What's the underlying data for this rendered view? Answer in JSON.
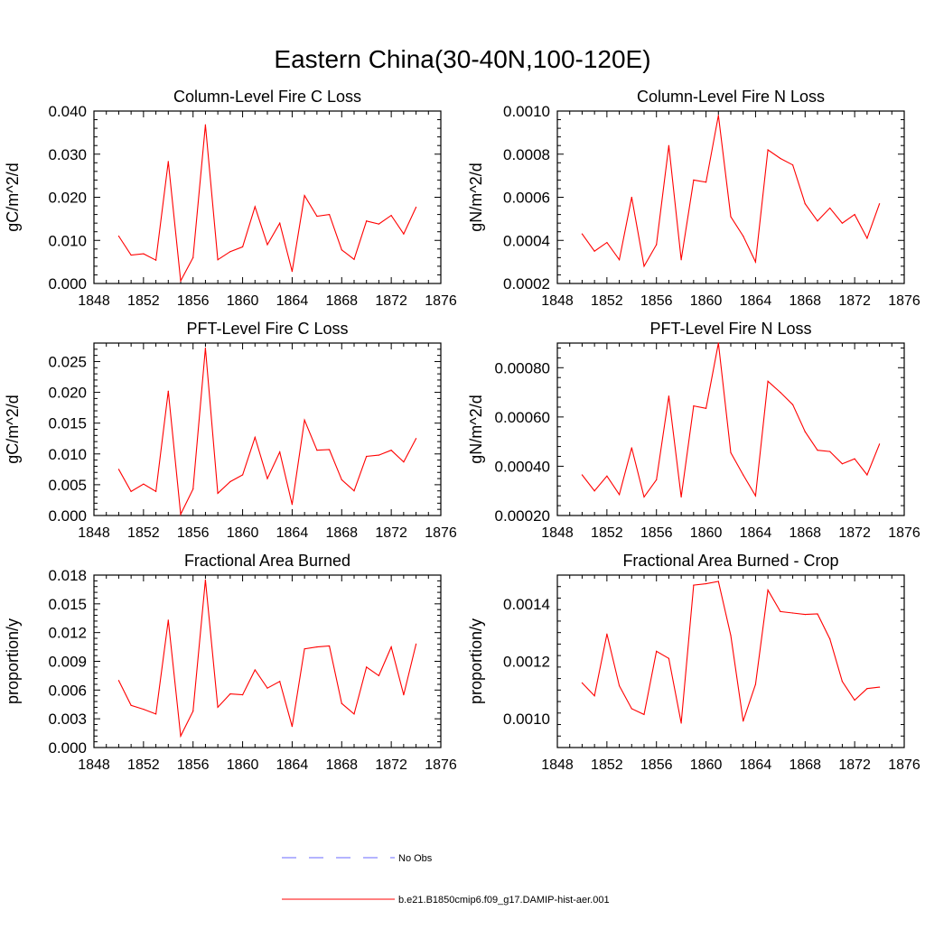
{
  "title": "Eastern China(30-40N,100-120E)",
  "legend": {
    "placement": "bottom-center",
    "entries": [
      {
        "label": "No Obs",
        "color": "#6a6aff",
        "style": "dashed"
      },
      {
        "label": "b.e21.B1850cmip6.f09_g17.DAMIP-hist-aer.001",
        "color": "#ff0000",
        "style": "solid"
      }
    ]
  },
  "chart_data": [
    {
      "type": "line",
      "title": "Column-Level Fire C Loss",
      "xlabel": "",
      "ylabel": "gC/m^2/d",
      "xlim": [
        1848,
        1876
      ],
      "ylim": [
        0,
        0.04
      ],
      "xticks": [
        "1848",
        "1852",
        "1856",
        "1860",
        "1864",
        "1868",
        "1872",
        "1876"
      ],
      "yticks": [
        "0.000",
        "0.010",
        "0.020",
        "0.030",
        "0.040"
      ],
      "x": [
        1850,
        1851,
        1852,
        1853,
        1854,
        1855,
        1856,
        1857,
        1858,
        1859,
        1860,
        1861,
        1862,
        1863,
        1864,
        1865,
        1866,
        1867,
        1868,
        1869,
        1870,
        1871,
        1872,
        1873,
        1874
      ],
      "series": [
        {
          "name": "b.e21.B1850cmip6.f09_g17.DAMIP-hist-aer.001",
          "color": "#ff0000",
          "values": [
            0.011,
            0.0066,
            0.0069,
            0.0054,
            0.0283,
            0.0006,
            0.006,
            0.0368,
            0.0055,
            0.0074,
            0.0085,
            0.0178,
            0.009,
            0.014,
            0.0028,
            0.0204,
            0.0156,
            0.016,
            0.0078,
            0.0056,
            0.0145,
            0.0138,
            0.0158,
            0.0115,
            0.0177
          ]
        }
      ]
    },
    {
      "type": "line",
      "title": "Column-Level Fire N Loss",
      "xlabel": "",
      "ylabel": "gN/m^2/d",
      "xlim": [
        1848,
        1876
      ],
      "ylim": [
        0.0002,
        0.001
      ],
      "xticks": [
        "1848",
        "1852",
        "1856",
        "1860",
        "1864",
        "1868",
        "1872",
        "1876"
      ],
      "yticks": [
        "0.0002",
        "0.0004",
        "0.0006",
        "0.0008",
        "0.0010"
      ],
      "x": [
        1850,
        1851,
        1852,
        1853,
        1854,
        1855,
        1856,
        1857,
        1858,
        1859,
        1860,
        1861,
        1862,
        1863,
        1864,
        1865,
        1866,
        1867,
        1868,
        1869,
        1870,
        1871,
        1872,
        1873,
        1874
      ],
      "series": [
        {
          "name": "b.e21.B1850cmip6.f09_g17.DAMIP-hist-aer.001",
          "color": "#ff0000",
          "values": [
            0.00043,
            0.00035,
            0.00039,
            0.00031,
            0.0006,
            0.00028,
            0.00038,
            0.00084,
            0.00031,
            0.00068,
            0.00067,
            0.00098,
            0.00051,
            0.00042,
            0.0003,
            0.00082,
            0.00078,
            0.00075,
            0.00057,
            0.00049,
            0.00055,
            0.00048,
            0.00052,
            0.00041,
            0.00057
          ]
        }
      ]
    },
    {
      "type": "line",
      "title": "PFT-Level Fire C Loss",
      "xlabel": "",
      "ylabel": "gC/m^2/d",
      "xlim": [
        1848,
        1876
      ],
      "ylim": [
        0,
        0.028
      ],
      "xticks": [
        "1848",
        "1852",
        "1856",
        "1860",
        "1864",
        "1868",
        "1872",
        "1876"
      ],
      "yticks": [
        "0.000",
        "0.005",
        "0.010",
        "0.015",
        "0.020",
        "0.025"
      ],
      "x": [
        1850,
        1851,
        1852,
        1853,
        1854,
        1855,
        1856,
        1857,
        1858,
        1859,
        1860,
        1861,
        1862,
        1863,
        1864,
        1865,
        1866,
        1867,
        1868,
        1869,
        1870,
        1871,
        1872,
        1873,
        1874
      ],
      "series": [
        {
          "name": "b.e21.B1850cmip6.f09_g17.DAMIP-hist-aer.001",
          "color": "#ff0000",
          "values": [
            0.0075,
            0.0039,
            0.0051,
            0.0039,
            0.0202,
            0.0002,
            0.0043,
            0.0272,
            0.0036,
            0.0055,
            0.0066,
            0.0127,
            0.006,
            0.0103,
            0.0018,
            0.0155,
            0.0106,
            0.0107,
            0.0058,
            0.004,
            0.0096,
            0.0098,
            0.0106,
            0.0087,
            0.0125
          ]
        }
      ]
    },
    {
      "type": "line",
      "title": "PFT-Level Fire N Loss",
      "xlabel": "",
      "ylabel": "gN/m^2/d",
      "xlim": [
        1848,
        1876
      ],
      "ylim": [
        0.0002,
        0.0009
      ],
      "xticks": [
        "1848",
        "1852",
        "1856",
        "1860",
        "1864",
        "1868",
        "1872",
        "1876"
      ],
      "yticks": [
        "0.00020",
        "0.00040",
        "0.00060",
        "0.00080"
      ],
      "x": [
        1850,
        1851,
        1852,
        1853,
        1854,
        1855,
        1856,
        1857,
        1858,
        1859,
        1860,
        1861,
        1862,
        1863,
        1864,
        1865,
        1866,
        1867,
        1868,
        1869,
        1870,
        1871,
        1872,
        1873,
        1874
      ],
      "series": [
        {
          "name": "b.e21.B1850cmip6.f09_g17.DAMIP-hist-aer.001",
          "color": "#ff0000",
          "values": [
            0.000365,
            0.0003,
            0.00036,
            0.000285,
            0.000475,
            0.000275,
            0.000345,
            0.000685,
            0.000275,
            0.000645,
            0.000635,
            0.0009,
            0.000455,
            0.000365,
            0.00028,
            0.000745,
            0.0007,
            0.00065,
            0.00054,
            0.000465,
            0.00046,
            0.00041,
            0.00043,
            0.000365,
            0.00049
          ]
        }
      ]
    },
    {
      "type": "line",
      "title": "Fractional Area Burned",
      "xlabel": "",
      "ylabel": "proportion/y",
      "xlim": [
        1848,
        1876
      ],
      "ylim": [
        0,
        0.018
      ],
      "xticks": [
        "1848",
        "1852",
        "1856",
        "1860",
        "1864",
        "1868",
        "1872",
        "1876"
      ],
      "yticks": [
        "0.000",
        "0.003",
        "0.006",
        "0.009",
        "0.012",
        "0.015",
        "0.018"
      ],
      "x": [
        1850,
        1851,
        1852,
        1853,
        1854,
        1855,
        1856,
        1857,
        1858,
        1859,
        1860,
        1861,
        1862,
        1863,
        1864,
        1865,
        1866,
        1867,
        1868,
        1869,
        1870,
        1871,
        1872,
        1873,
        1874
      ],
      "series": [
        {
          "name": "b.e21.B1850cmip6.f09_g17.DAMIP-hist-aer.001",
          "color": "#ff0000",
          "values": [
            0.007,
            0.0044,
            0.004,
            0.0035,
            0.0133,
            0.0012,
            0.0038,
            0.0175,
            0.0042,
            0.0056,
            0.0055,
            0.0081,
            0.0062,
            0.0069,
            0.0022,
            0.0103,
            0.0105,
            0.0106,
            0.0046,
            0.0035,
            0.0084,
            0.0075,
            0.0105,
            0.0055,
            0.0108
          ]
        }
      ]
    },
    {
      "type": "line",
      "title": "Fractional Area Burned - Crop",
      "xlabel": "",
      "ylabel": "proportion/y",
      "xlim": [
        1848,
        1876
      ],
      "ylim": [
        0.0009,
        0.0015
      ],
      "xticks": [
        "1848",
        "1852",
        "1856",
        "1860",
        "1864",
        "1868",
        "1872",
        "1876"
      ],
      "yticks": [
        "0.0010",
        "0.0012",
        "0.0014"
      ],
      "yticks_at": [
        0.001,
        0.0012,
        0.0014
      ],
      "x": [
        1850,
        1851,
        1852,
        1853,
        1854,
        1855,
        1856,
        1857,
        1858,
        1859,
        1860,
        1861,
        1862,
        1863,
        1864,
        1865,
        1866,
        1867,
        1868,
        1869,
        1870,
        1871,
        1872,
        1873,
        1874
      ],
      "series": [
        {
          "name": "b.e21.B1850cmip6.f09_g17.DAMIP-hist-aer.001",
          "color": "#ff0000",
          "values": [
            0.001125,
            0.00108,
            0.001295,
            0.001115,
            0.001035,
            0.001015,
            0.001235,
            0.00121,
            0.000985,
            0.001465,
            0.00147,
            0.001478,
            0.00129,
            0.000992,
            0.00112,
            0.001448,
            0.001373,
            0.001368,
            0.001363,
            0.001365,
            0.001278,
            0.00113,
            0.001065,
            0.001105,
            0.00111
          ]
        }
      ]
    }
  ]
}
